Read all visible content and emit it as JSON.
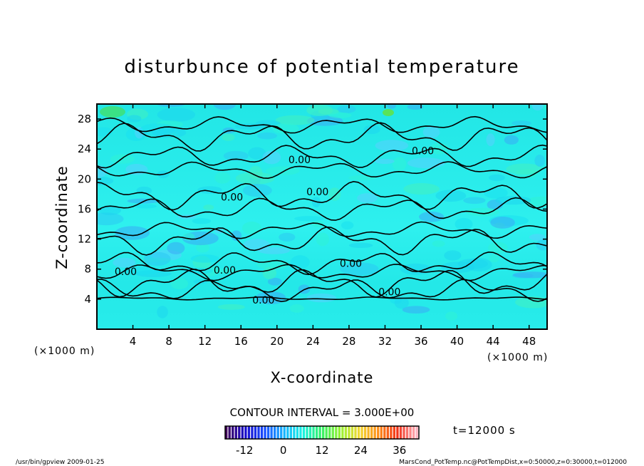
{
  "chart_data": {
    "type": "heatmap",
    "title": "disturbunce of potential temperature",
    "xlabel": "X-coordinate",
    "ylabel": "Z-coordinate",
    "x_unit": "(×1000 m)",
    "y_unit": "(×1000 m)",
    "xlim": [
      0,
      50
    ],
    "ylim": [
      0,
      30
    ],
    "x_ticks": [
      4,
      8,
      12,
      16,
      20,
      24,
      28,
      32,
      36,
      40,
      44,
      48
    ],
    "y_ticks": [
      4,
      8,
      12,
      16,
      20,
      24,
      28
    ],
    "contour_interval_label": "CONTOUR INTERVAL = 3.000E+00",
    "contour_labels": [
      {
        "text": "0.00",
        "x": 18.5,
        "z": 3.9
      },
      {
        "text": "0.00",
        "x": 3.2,
        "z": 7.7
      },
      {
        "text": "0.00",
        "x": 14.2,
        "z": 7.9
      },
      {
        "text": "0.00",
        "x": 28.2,
        "z": 8.8
      },
      {
        "text": "0.00",
        "x": 32.5,
        "z": 5.0
      },
      {
        "text": "0.00",
        "x": 15.0,
        "z": 17.6
      },
      {
        "text": "0.00",
        "x": 24.5,
        "z": 18.3
      },
      {
        "text": "0.00",
        "x": 22.5,
        "z": 22.6
      },
      {
        "text": "0.00",
        "x": 36.2,
        "z": 23.8
      }
    ],
    "contour_lines_z": [
      4.1,
      5.2,
      6.2,
      7.6,
      8.8,
      11.8,
      13.2,
      16.0,
      17.8,
      21.2,
      23.0,
      25.6,
      27.2
    ],
    "colorbar": {
      "min": -18,
      "max": 42,
      "ticks": [
        -12,
        0,
        12,
        24,
        36
      ]
    },
    "time_label": "t=12000 s",
    "grid": false,
    "legend": "none"
  },
  "footer": {
    "left": "/usr/bin/gpview   2009-01-25",
    "right": "MarsCond_PotTemp.nc@PotTempDist,x=0:50000,z=0:30000,t=012000"
  }
}
